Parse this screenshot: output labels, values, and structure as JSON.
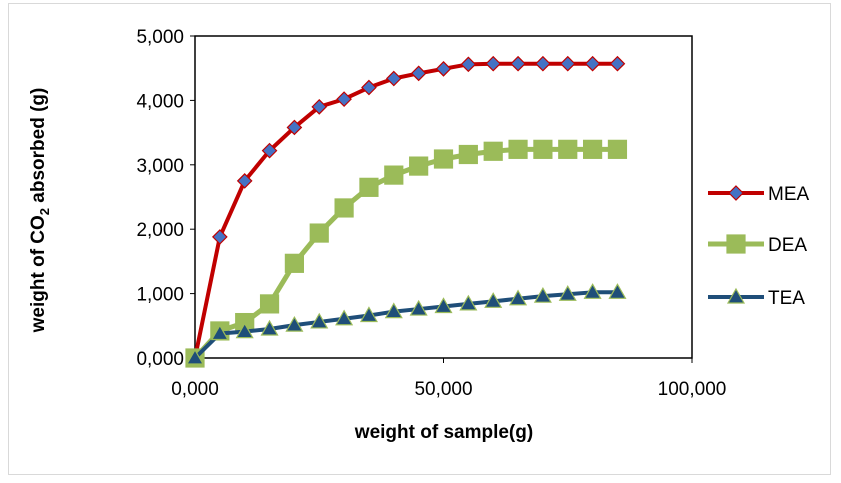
{
  "chart_data": {
    "type": "line",
    "xlabel": "weight of  sample(g)",
    "ylabel": {
      "before": "weight of CO",
      "sub": "2",
      "after": " absorbed (g)"
    },
    "xlim": [
      0,
      100000
    ],
    "ylim": [
      0,
      5000
    ],
    "x_ticks": [
      {
        "value": 0,
        "label": "0,000"
      },
      {
        "value": 50000,
        "label": "50,000"
      },
      {
        "value": 100000,
        "label": "100,000"
      }
    ],
    "y_ticks": [
      {
        "value": 0,
        "label": "0,000"
      },
      {
        "value": 1000,
        "label": "1,000"
      },
      {
        "value": 2000,
        "label": "2,000"
      },
      {
        "value": 3000,
        "label": "3,000"
      },
      {
        "value": 4000,
        "label": "4,000"
      },
      {
        "value": 5000,
        "label": "5,000"
      }
    ],
    "grid": false,
    "legend_position": "right",
    "x": [
      0,
      5000,
      10000,
      15000,
      20000,
      25000,
      30000,
      35000,
      40000,
      45000,
      50000,
      55000,
      60000,
      65000,
      70000,
      75000,
      80000,
      85000
    ],
    "series": [
      {
        "name": "MEA",
        "color": "#c00000",
        "marker_fill": "#4472c4",
        "marker": "diamond",
        "values": [
          0,
          1880,
          2750,
          3220,
          3580,
          3900,
          4020,
          4200,
          4340,
          4420,
          4490,
          4560,
          4570,
          4570,
          4570,
          4570,
          4570,
          4570
        ]
      },
      {
        "name": "DEA",
        "color": "#9bbb59",
        "marker_fill": "#9bbb59",
        "marker": "square",
        "values": [
          0,
          420,
          550,
          840,
          1470,
          1940,
          2330,
          2650,
          2840,
          2980,
          3090,
          3160,
          3210,
          3240,
          3240,
          3240,
          3240,
          3240
        ]
      },
      {
        "name": "TEA",
        "color": "#1f4e79",
        "marker_fill": "#1f4e79",
        "marker": "triangle",
        "values": [
          0,
          380,
          410,
          450,
          510,
          560,
          610,
          660,
          720,
          760,
          800,
          840,
          880,
          920,
          960,
          990,
          1020,
          1020
        ]
      }
    ]
  }
}
